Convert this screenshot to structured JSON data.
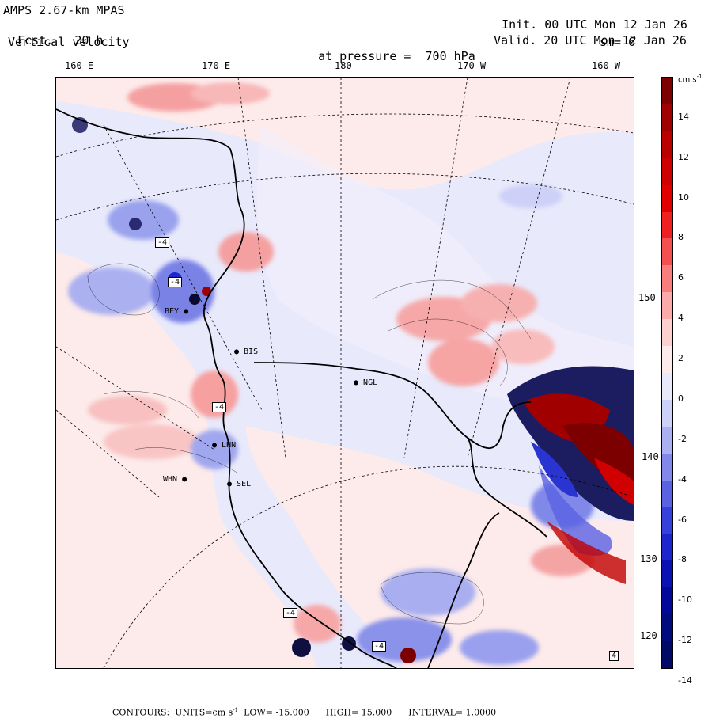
{
  "header": {
    "model": "AMPS 2.67-km MPAS",
    "forecast_label": "Fcst.",
    "forecast_value": "20 h",
    "field": "Vertical velocity",
    "pressure_label": "at pressure =",
    "pressure_value": "700 hPa",
    "init_label": "Init.",
    "init_value": "00 UTC Mon 12 Jan 26",
    "valid_label": "Valid.",
    "valid_value": "20 UTC Mon 12 Jan 26",
    "smooth": "sm= 6"
  },
  "longitude_labels": [
    "160 E",
    "170 E",
    "180",
    "170 W",
    "160 W"
  ],
  "latitude_labels": [
    "150 W",
    "140 W",
    "130 W",
    "120 W"
  ],
  "stations": [
    "NGL",
    "BIS",
    "BEY",
    "LHN",
    "WHN",
    "SEL"
  ],
  "contour_boxes": [
    "-4",
    "-4",
    "-4",
    "-4",
    "-4",
    "4"
  ],
  "colorbar": {
    "unit": "cm s",
    "unit_exp": "-1",
    "labels": [
      "14",
      "12",
      "10",
      "8",
      "6",
      "4",
      "2",
      "0",
      "-2",
      "-4",
      "-6",
      "-8",
      "-10",
      "-12",
      "-14"
    ],
    "colors": [
      "#7d0000",
      "#a00000",
      "#bb0000",
      "#cf0000",
      "#e00000",
      "#ef2020",
      "#f55050",
      "#f87d7d",
      "#fbaaaa",
      "#fdd0d0",
      "#fdeaea",
      "#e8e9fb",
      "#cdd0f7",
      "#aab0f0",
      "#8288ea",
      "#5a62e2",
      "#3640da",
      "#1c26cc",
      "#0a12b4",
      "#04089a",
      "#000b7e",
      "#000a66"
    ]
  },
  "footer": {
    "contours_label": "CONTOURS:",
    "units_label": "UNITS=cm s",
    "units_exp": "-1",
    "low_label": "LOW=",
    "low_value": "-15.000",
    "high_label": "HIGH=",
    "high_value": "15.000",
    "interval_label": "INTERVAL=",
    "interval_value": "1.0000"
  }
}
